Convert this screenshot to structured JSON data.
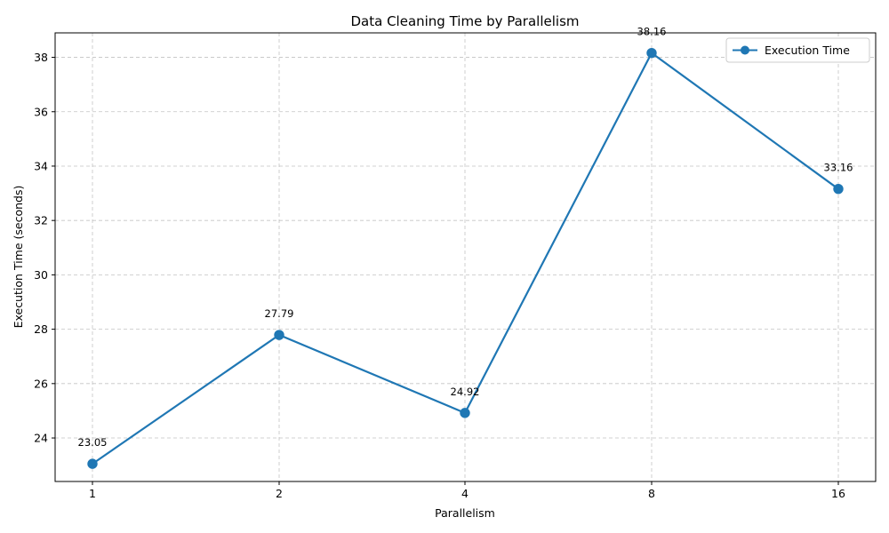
{
  "chart_data": {
    "type": "line",
    "title": "Data Cleaning Time by Parallelism",
    "xlabel": "Parallelism",
    "ylabel": "Execution Time (seconds)",
    "categories": [
      "1",
      "2",
      "4",
      "8",
      "16"
    ],
    "series": [
      {
        "name": "Execution Time",
        "values": [
          23.05,
          27.79,
          24.92,
          38.16,
          33.16
        ],
        "labels": [
          "23.05",
          "27.79",
          "24.92",
          "38.16",
          "33.16"
        ],
        "color": "#1f77b4"
      }
    ],
    "ylim": [
      22.4,
      38.9
    ],
    "yticks": [
      24,
      26,
      28,
      30,
      32,
      34,
      36,
      38
    ],
    "ytick_labels": [
      "24",
      "26",
      "28",
      "30",
      "32",
      "34",
      "36",
      "38"
    ],
    "grid": true,
    "legend_position": "top-right"
  }
}
